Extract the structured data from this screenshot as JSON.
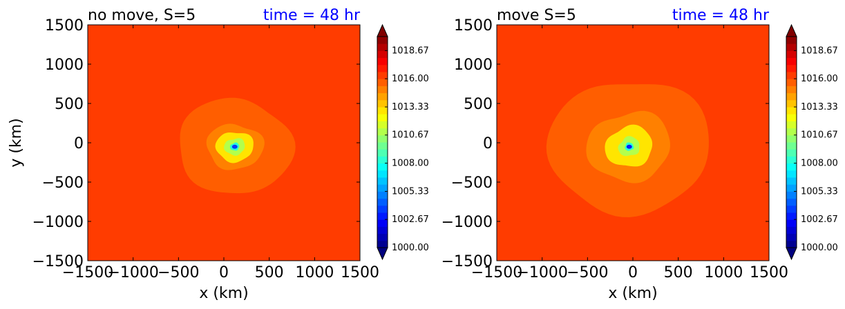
{
  "chart_data": [
    {
      "type": "contourf",
      "title_left": "no move, S=5",
      "title_right": "time = 48 hr",
      "title_right_color": "#0000ff",
      "xlabel": "x (km)",
      "ylabel": "y (km)",
      "xlim": [
        -1500,
        1500
      ],
      "ylim": [
        -1500,
        1500
      ],
      "xticks": [
        -1500,
        -1000,
        -500,
        0,
        500,
        1000,
        1500
      ],
      "yticks": [
        -1500,
        -1000,
        -500,
        0,
        500,
        1000,
        1500
      ],
      "xtick_labels": [
        "−1500",
        "−1000",
        "−500",
        "0",
        "500",
        "1000",
        "1500"
      ],
      "ytick_labels": [
        "−1500",
        "−1000",
        "−500",
        "0",
        "500",
        "1000",
        "1500"
      ],
      "background_level": 1016.33,
      "center_km": [
        120,
        -50
      ],
      "min_pressure_approx": 1003.5,
      "regions": [
        {
          "level": 1015.67,
          "approx_radius_km": 620
        },
        {
          "level": 1015.0,
          "approx_radius_km": 300
        },
        {
          "level": 1013.33,
          "approx_radius_km": 200
        },
        {
          "level": 1011.0,
          "approx_radius_km": 110
        },
        {
          "level": 1008.0,
          "approx_radius_km": 50
        },
        {
          "level": 1005.0,
          "approx_radius_km": 20
        }
      ],
      "colorbar": {
        "min": 1000.0,
        "max": 1020.0,
        "extend": "both",
        "tick_values": [
          1000.0,
          1002.67,
          1005.33,
          1008.0,
          1010.67,
          1013.33,
          1016.0,
          1018.67
        ],
        "tick_labels": [
          "1000.00",
          "1002.67",
          "1005.33",
          "1008.00",
          "1010.67",
          "1013.33",
          "1016.00",
          "1018.67"
        ]
      }
    },
    {
      "type": "contourf",
      "title_left": "move S=5",
      "title_right": "time = 48 hr",
      "title_right_color": "#0000ff",
      "xlabel": "x (km)",
      "ylabel": "",
      "xlim": [
        -1500,
        1500
      ],
      "ylim": [
        -1500,
        1500
      ],
      "xticks": [
        -1500,
        -1000,
        -500,
        0,
        500,
        1000,
        1500
      ],
      "yticks": [
        -1500,
        -1000,
        -500,
        0,
        500,
        1000,
        1500
      ],
      "xtick_labels": [
        "−1500",
        "−1000",
        "−500",
        "0",
        "500",
        "1000",
        "1500"
      ],
      "ytick_labels": [
        "−1500",
        "−1000",
        "−500",
        "0",
        "500",
        "1000",
        "1500"
      ],
      "background_level": 1016.33,
      "center_km": [
        -40,
        -50
      ],
      "min_pressure_approx": 1003.0,
      "regions": [
        {
          "level": 1015.67,
          "approx_radius_km": 870
        },
        {
          "level": 1015.0,
          "approx_radius_km": 450
        },
        {
          "level": 1013.33,
          "approx_radius_km": 260
        },
        {
          "level": 1011.0,
          "approx_radius_km": 120
        },
        {
          "level": 1008.0,
          "approx_radius_km": 50
        },
        {
          "level": 1005.0,
          "approx_radius_km": 22
        }
      ],
      "colorbar": {
        "min": 1000.0,
        "max": 1020.0,
        "extend": "both",
        "tick_values": [
          1000.0,
          1002.67,
          1005.33,
          1008.0,
          1010.67,
          1013.33,
          1016.0,
          1018.67
        ],
        "tick_labels": [
          "1000.00",
          "1002.67",
          "1005.33",
          "1008.00",
          "1010.67",
          "1013.33",
          "1016.00",
          "1018.67"
        ]
      }
    }
  ]
}
